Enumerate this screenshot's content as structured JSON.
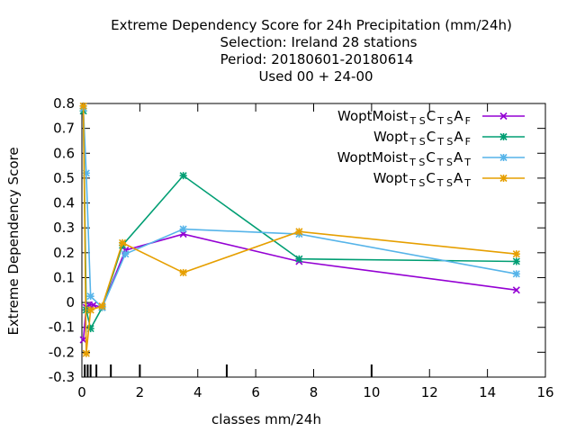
{
  "chart_data": {
    "type": "line",
    "title_lines": [
      "Extreme Dependency Score  for 24h Precipitation (mm/24h)",
      "Selection: Ireland      28 stations",
      "Period: 20180601-20180614",
      "Used  00 + 24-00"
    ],
    "xlabel": "classes mm/24h",
    "ylabel": "Extreme Dependency Score",
    "xlim": [
      0,
      16
    ],
    "ylim": [
      -0.3,
      0.8
    ],
    "xticks": [
      0,
      2,
      4,
      6,
      8,
      10,
      12,
      14,
      16
    ],
    "yticks": [
      -0.3,
      -0.2,
      -0.1,
      0,
      0.1,
      0.2,
      0.3,
      0.4,
      0.5,
      0.6,
      0.7,
      0.8
    ],
    "class_marks": [
      0.1,
      0.2,
      0.3,
      0.5,
      1,
      2,
      5,
      10
    ],
    "grid": false,
    "legend_position": "top-right",
    "series": [
      {
        "name_base": "WoptMoist",
        "name_sub1": "T S",
        "name_mid": "C",
        "name_sub2": "T S",
        "name_end": "A",
        "name_sub3": "F",
        "color": "#9400d3",
        "marker": "cross",
        "points": [
          [
            0.05,
            -0.15
          ],
          [
            0.15,
            -0.02
          ],
          [
            0.25,
            -0.01
          ],
          [
            0.4,
            -0.01
          ],
          [
            0.7,
            -0.02
          ],
          [
            1.5,
            0.21
          ],
          [
            3.5,
            0.275
          ],
          [
            7.5,
            0.165
          ],
          [
            15,
            0.05
          ]
        ]
      },
      {
        "name_base": "Wopt",
        "name_sub1": "T S",
        "name_mid": "C",
        "name_sub2": "T S",
        "name_end": "A",
        "name_sub3": "F",
        "color": "#009e73",
        "marker": "asterisk",
        "points": [
          [
            0.05,
            0.77
          ],
          [
            0.15,
            -0.03
          ],
          [
            0.3,
            -0.105
          ],
          [
            0.7,
            -0.02
          ],
          [
            1.4,
            0.23
          ],
          [
            3.5,
            0.51
          ],
          [
            7.5,
            0.175
          ],
          [
            15,
            0.165
          ]
        ]
      },
      {
        "name_base": "WoptMoist",
        "name_sub1": "T S",
        "name_mid": "C",
        "name_sub2": "T S",
        "name_end": "A",
        "name_sub3": "T",
        "color": "#56b4e9",
        "marker": "star",
        "points": [
          [
            0.05,
            0.78
          ],
          [
            0.15,
            0.52
          ],
          [
            0.3,
            0.025
          ],
          [
            0.7,
            -0.02
          ],
          [
            1.5,
            0.195
          ],
          [
            3.5,
            0.295
          ],
          [
            7.5,
            0.275
          ],
          [
            15,
            0.115
          ]
        ]
      },
      {
        "name_base": "Wopt",
        "name_sub1": "T S",
        "name_mid": "C",
        "name_sub2": "T S",
        "name_end": "A",
        "name_sub3": "T",
        "color": "#e69f00",
        "marker": "star",
        "points": [
          [
            0.05,
            0.79
          ],
          [
            0.15,
            -0.205
          ],
          [
            0.3,
            -0.03
          ],
          [
            0.7,
            -0.015
          ],
          [
            1.4,
            0.24
          ],
          [
            3.5,
            0.12
          ],
          [
            7.5,
            0.285
          ],
          [
            15,
            0.195
          ]
        ]
      }
    ]
  }
}
